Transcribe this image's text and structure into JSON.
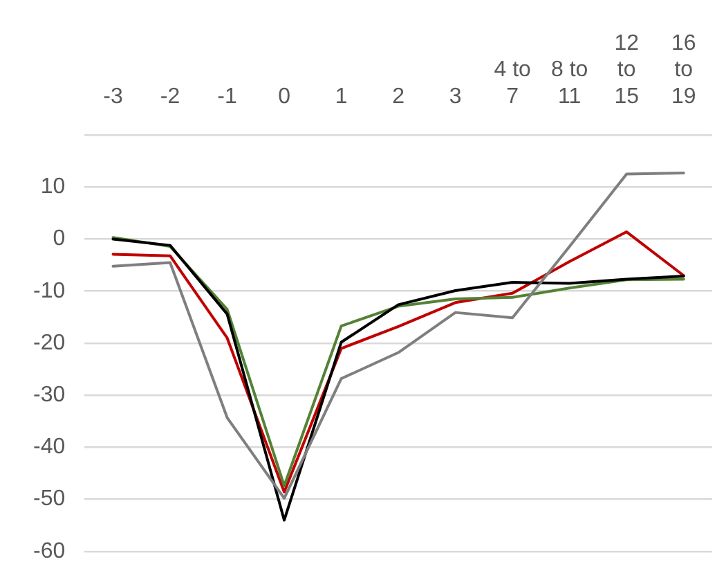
{
  "chart_data": {
    "type": "line",
    "categories": [
      "-3",
      "-2",
      "-1",
      "0",
      "1",
      "2",
      "3",
      "4 to 7",
      "8 to 11",
      "12 to 15",
      "16 to 19"
    ],
    "series": [
      {
        "color": "#7f7f7f",
        "values": [
          -5.2,
          -4.5,
          -34.3,
          -49.8,
          -26.8,
          -21.8,
          -14.1,
          -15.1,
          -1.4,
          12.5,
          12.7
        ]
      },
      {
        "color": "#000000",
        "values": [
          0,
          -1.2,
          -14.4,
          -54,
          -19.8,
          -12.6,
          -9.9,
          -8.3,
          -8.5,
          -7.7,
          -7.1
        ]
      },
      {
        "color": "#548235",
        "values": [
          0.3,
          -1.4,
          -13.5,
          -47.4,
          -16.7,
          -12.9,
          -11.5,
          -11.2,
          -9.4,
          -7.8,
          -7.7
        ]
      },
      {
        "color": "#c00000",
        "values": [
          -2.9,
          -3.2,
          -19,
          -48.6,
          -21,
          -16.8,
          -12.2,
          -10.4,
          -4.3,
          1.4,
          -7
        ]
      }
    ],
    "ylim": [
      -60,
      20
    ],
    "yticks": [
      -60,
      -50,
      -40,
      -30,
      -20,
      -10,
      0,
      10,
      {
        "value": 20,
        "label": null
      }
    ],
    "grid": "y",
    "legend": false,
    "marker": "none",
    "line_style": "solid"
  }
}
